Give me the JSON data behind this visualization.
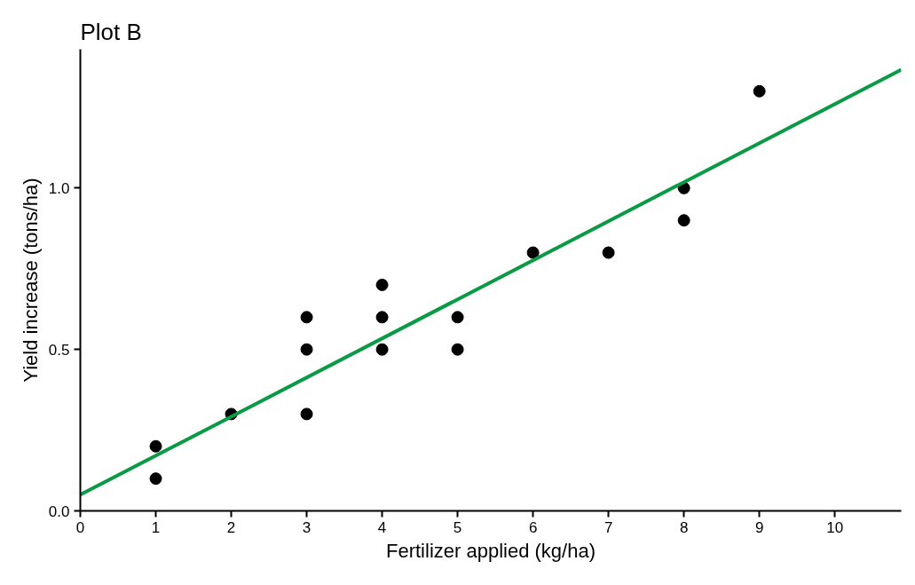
{
  "chart_data": {
    "type": "scatter",
    "title": "Plot B",
    "xlabel": "Fertilizer applied (kg/ha)",
    "ylabel": "Yield increase (tons/ha)",
    "xlim": [
      0,
      10.88
    ],
    "ylim": [
      0,
      1.43
    ],
    "xticks": [
      0,
      1,
      2,
      3,
      4,
      5,
      6,
      7,
      8,
      9,
      10
    ],
    "yticks": [
      {
        "value": 0,
        "label": "0.0"
      },
      {
        "value": 0.5,
        "label": "0.5"
      },
      {
        "value": 1.0,
        "label": "1.0"
      }
    ],
    "grid": false,
    "series": [
      {
        "marker": "circle",
        "color": "#000000",
        "x": [
          1,
          1,
          2,
          3,
          3,
          3,
          4,
          4,
          4,
          5,
          5,
          6,
          7,
          8,
          8,
          9
        ],
        "values": [
          0.2,
          0.1,
          0.3,
          0.6,
          0.5,
          0.3,
          0.7,
          0.6,
          0.5,
          0.6,
          0.5,
          0.8,
          0.8,
          1.0,
          0.9,
          1.3
        ]
      },
      {
        "type": "line",
        "color": "#0a9a45",
        "line_style": "solid",
        "x": [
          0,
          10.88
        ],
        "values": [
          0.05,
          1.367
        ]
      }
    ]
  }
}
